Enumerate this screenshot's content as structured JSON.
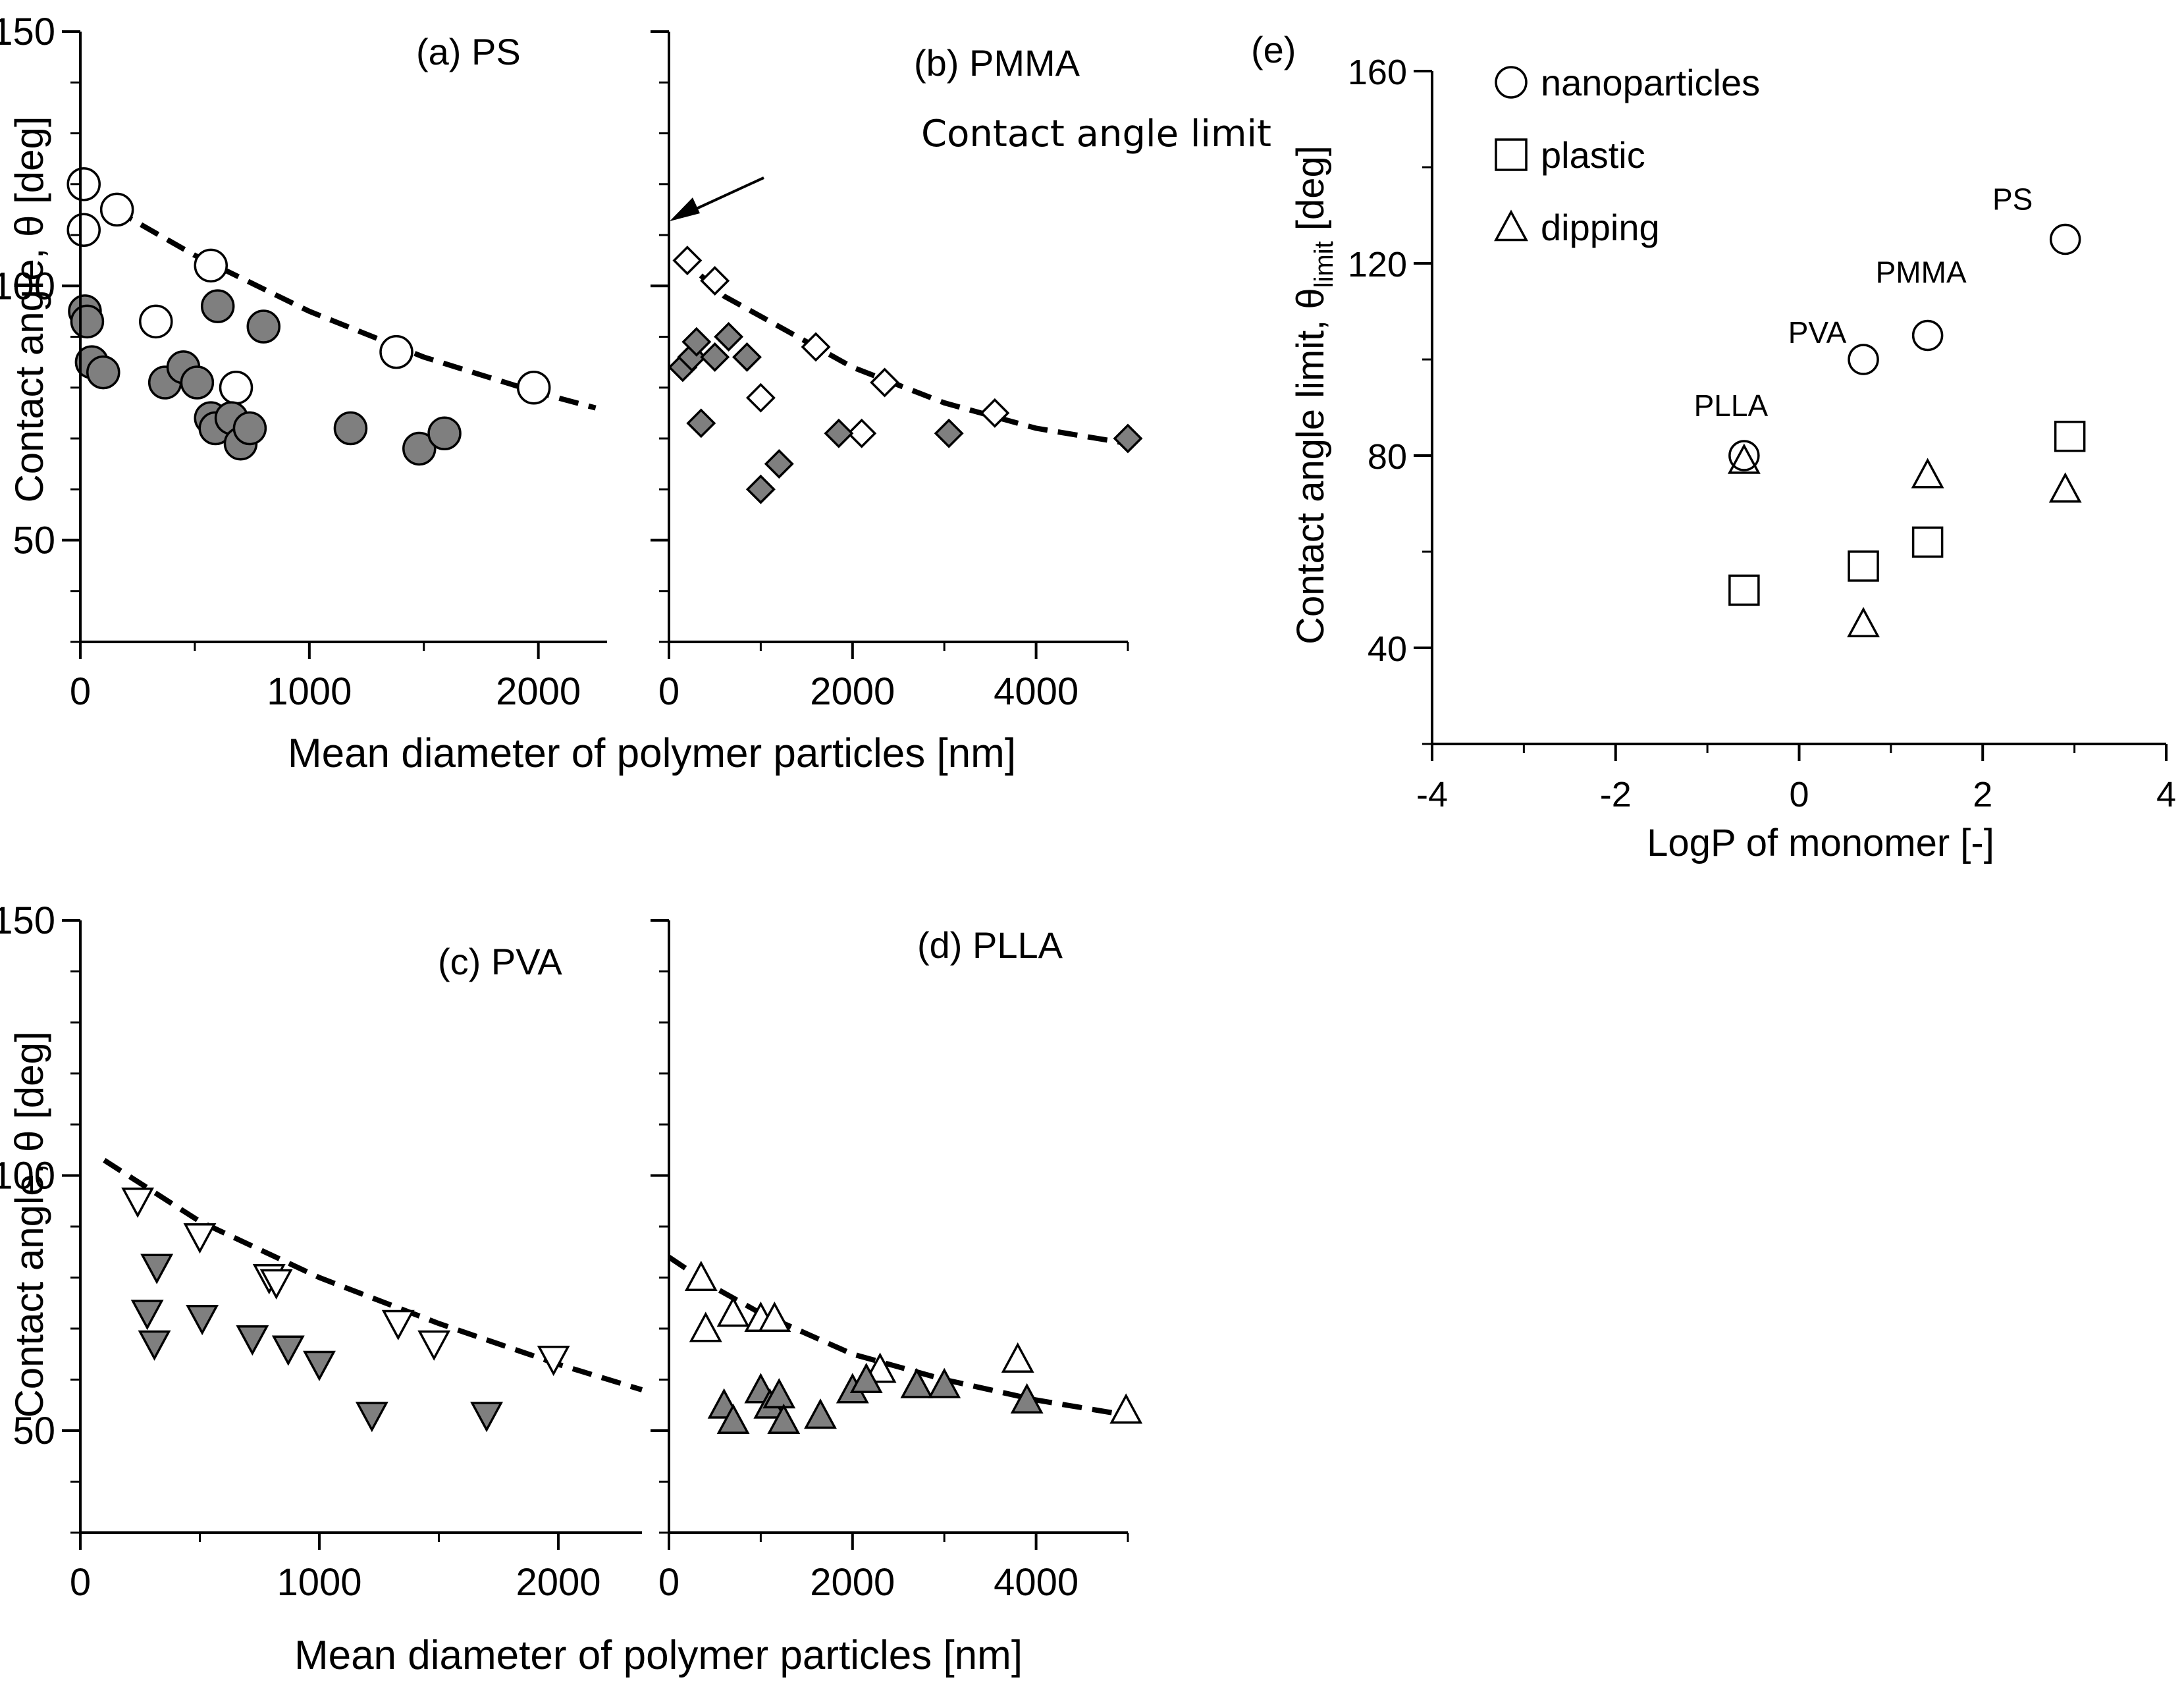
{
  "chart_data": [
    {
      "id": "a",
      "type": "scatter",
      "title": "(a) PS",
      "xlabel": "Mean diameter of polymer particles [nm]",
      "ylabel": "Contact angle, θ [deg]",
      "xlim": [
        0,
        2300
      ],
      "ylim": [
        30,
        150
      ],
      "xticks": [
        0,
        1000,
        2000
      ],
      "yticks": [
        50,
        100,
        150
      ],
      "marker": "circle",
      "series": [
        {
          "name": "open",
          "fill": "#ffffff",
          "points": [
            [
              15,
              120
            ],
            [
              15,
              111
            ],
            [
              160,
              115
            ],
            [
              330,
              93
            ],
            [
              570,
              104
            ],
            [
              680,
              80
            ],
            [
              1380,
              87
            ],
            [
              1980,
              80
            ]
          ]
        },
        {
          "name": "filled",
          "fill": "#7f7f7f",
          "points": [
            [
              20,
              95
            ],
            [
              30,
              93
            ],
            [
              50,
              85
            ],
            [
              100,
              83
            ],
            [
              370,
              81
            ],
            [
              450,
              84
            ],
            [
              510,
              81
            ],
            [
              570,
              74
            ],
            [
              590,
              72
            ],
            [
              600,
              96
            ],
            [
              660,
              74
            ],
            [
              700,
              69
            ],
            [
              740,
              72
            ],
            [
              800,
              92
            ],
            [
              1180,
              72
            ],
            [
              1480,
              68
            ],
            [
              1590,
              71
            ]
          ]
        }
      ],
      "fit": {
        "style": "dashed",
        "points": [
          [
            150,
            115
          ],
          [
            500,
            106
          ],
          [
            1000,
            95
          ],
          [
            1500,
            86
          ],
          [
            2000,
            79
          ],
          [
            2250,
            76
          ]
        ]
      }
    },
    {
      "id": "b",
      "type": "scatter",
      "title": "(b) PMMA",
      "annotation": "Contact angle limit",
      "annotation_target": 112,
      "xlabel": "Mean diameter of polymer particles [nm]",
      "xlim": [
        0,
        5000
      ],
      "ylim": [
        30,
        150
      ],
      "xticks": [
        0,
        2000,
        4000
      ],
      "yticks": [
        50,
        100,
        150
      ],
      "marker": "diamond",
      "series": [
        {
          "name": "open",
          "fill": "#ffffff",
          "points": [
            [
              200,
              105
            ],
            [
              500,
              101
            ],
            [
              1000,
              78
            ],
            [
              1600,
              88
            ],
            [
              2100,
              71
            ],
            [
              2350,
              81
            ],
            [
              3550,
              75
            ]
          ]
        },
        {
          "name": "filled",
          "fill": "#7f7f7f",
          "points": [
            [
              150,
              84
            ],
            [
              250,
              86
            ],
            [
              300,
              89
            ],
            [
              350,
              73
            ],
            [
              500,
              86
            ],
            [
              650,
              90
            ],
            [
              850,
              86
            ],
            [
              1000,
              60
            ],
            [
              1200,
              65
            ],
            [
              1850,
              71
            ],
            [
              3050,
              71
            ],
            [
              5000,
              70
            ]
          ]
        }
      ],
      "fit": {
        "style": "dashed",
        "points": [
          [
            100,
            106
          ],
          [
            600,
            98
          ],
          [
            1200,
            92
          ],
          [
            2000,
            84
          ],
          [
            3000,
            77
          ],
          [
            4000,
            72
          ],
          [
            5000,
            69
          ]
        ]
      }
    },
    {
      "id": "c",
      "type": "scatter",
      "title": "(c) PVA",
      "xlabel": "",
      "ylabel": "Contact angle, θ [deg]",
      "xlim": [
        0,
        2350
      ],
      "ylim": [
        30,
        150
      ],
      "xticks": [
        0,
        1000,
        2000
      ],
      "yticks": [
        50,
        100,
        150
      ],
      "marker": "triangle-down",
      "series": [
        {
          "name": "open",
          "fill": "#ffffff",
          "points": [
            [
              240,
              95
            ],
            [
              500,
              88
            ],
            [
              790,
              80
            ],
            [
              820,
              79
            ],
            [
              1330,
              71
            ],
            [
              1480,
              67
            ],
            [
              1980,
              64
            ]
          ]
        },
        {
          "name": "filled",
          "fill": "#7f7f7f",
          "points": [
            [
              280,
              73
            ],
            [
              310,
              67
            ],
            [
              320,
              82
            ],
            [
              510,
              72
            ],
            [
              720,
              68
            ],
            [
              870,
              66
            ],
            [
              1000,
              63
            ],
            [
              1220,
              53
            ],
            [
              1700,
              53
            ]
          ]
        }
      ],
      "fit": {
        "style": "dashed",
        "points": [
          [
            100,
            103
          ],
          [
            500,
            91
          ],
          [
            1000,
            80
          ],
          [
            1500,
            71
          ],
          [
            2000,
            63
          ],
          [
            2350,
            58
          ]
        ]
      }
    },
    {
      "id": "d",
      "type": "scatter",
      "title": "(d) PLLA",
      "xlabel": "Mean diameter of polymer particles [nm]",
      "xlim": [
        0,
        5000
      ],
      "ylim": [
        30,
        150
      ],
      "xticks": [
        0,
        2000,
        4000
      ],
      "yticks": [
        50,
        100,
        150
      ],
      "marker": "triangle-up",
      "series": [
        {
          "name": "open",
          "fill": "#ffffff",
          "points": [
            [
              350,
              80
            ],
            [
              400,
              70
            ],
            [
              700,
              73
            ],
            [
              1000,
              72
            ],
            [
              1150,
              72
            ],
            [
              2300,
              62
            ],
            [
              3800,
              64
            ],
            [
              4980,
              54
            ]
          ]
        },
        {
          "name": "filled",
          "fill": "#7f7f7f",
          "points": [
            [
              600,
              55
            ],
            [
              700,
              52
            ],
            [
              1000,
              58
            ],
            [
              1100,
              55
            ],
            [
              1200,
              57
            ],
            [
              1250,
              52
            ],
            [
              1650,
              53
            ],
            [
              2000,
              58
            ],
            [
              2150,
              60
            ],
            [
              2700,
              59
            ],
            [
              3000,
              59
            ],
            [
              3900,
              56
            ]
          ]
        }
      ],
      "fit": {
        "style": "dashed",
        "points": [
          [
            0,
            84
          ],
          [
            500,
            78
          ],
          [
            1000,
            73
          ],
          [
            2000,
            65
          ],
          [
            3000,
            60
          ],
          [
            4000,
            56
          ],
          [
            5000,
            53
          ]
        ]
      }
    },
    {
      "id": "e",
      "type": "scatter",
      "title": "(e)",
      "xlabel": "LogP of monomer [-]",
      "ylabel_main": "Contact angle limit, θ",
      "ylabel_sub": "limit",
      "ylabel_unit": " [deg]",
      "xlim": [
        -4,
        4
      ],
      "ylim": [
        20,
        160
      ],
      "xticks": [
        -4,
        -2,
        0,
        2,
        4
      ],
      "yticks": [
        40,
        80,
        120,
        160
      ],
      "legend": [
        {
          "marker": "circle",
          "label": "nanoparticles"
        },
        {
          "marker": "square",
          "label": "plastic"
        },
        {
          "marker": "triangle-up",
          "label": "dipping"
        }
      ],
      "series": [
        {
          "name": "nanoparticles",
          "marker": "circle",
          "points": [
            [
              -0.6,
              80
            ],
            [
              0.7,
              100
            ],
            [
              1.4,
              105
            ],
            [
              2.9,
              125
            ]
          ]
        },
        {
          "name": "plastic",
          "marker": "square",
          "points": [
            [
              -0.6,
              52
            ],
            [
              0.7,
              57
            ],
            [
              1.4,
              62
            ],
            [
              2.95,
              84
            ]
          ]
        },
        {
          "name": "dipping",
          "marker": "triangle-up",
          "points": [
            [
              -0.6,
              79
            ],
            [
              0.7,
              45
            ],
            [
              1.4,
              76
            ],
            [
              2.9,
              73
            ]
          ]
        }
      ],
      "point_labels": [
        {
          "text": "PLLA",
          "x": -0.6,
          "y": 80
        },
        {
          "text": "PVA",
          "x": 0.7,
          "y": 100
        },
        {
          "text": "PMMA",
          "x": 1.4,
          "y": 105
        },
        {
          "text": "PS",
          "x": 2.9,
          "y": 125
        }
      ]
    }
  ]
}
